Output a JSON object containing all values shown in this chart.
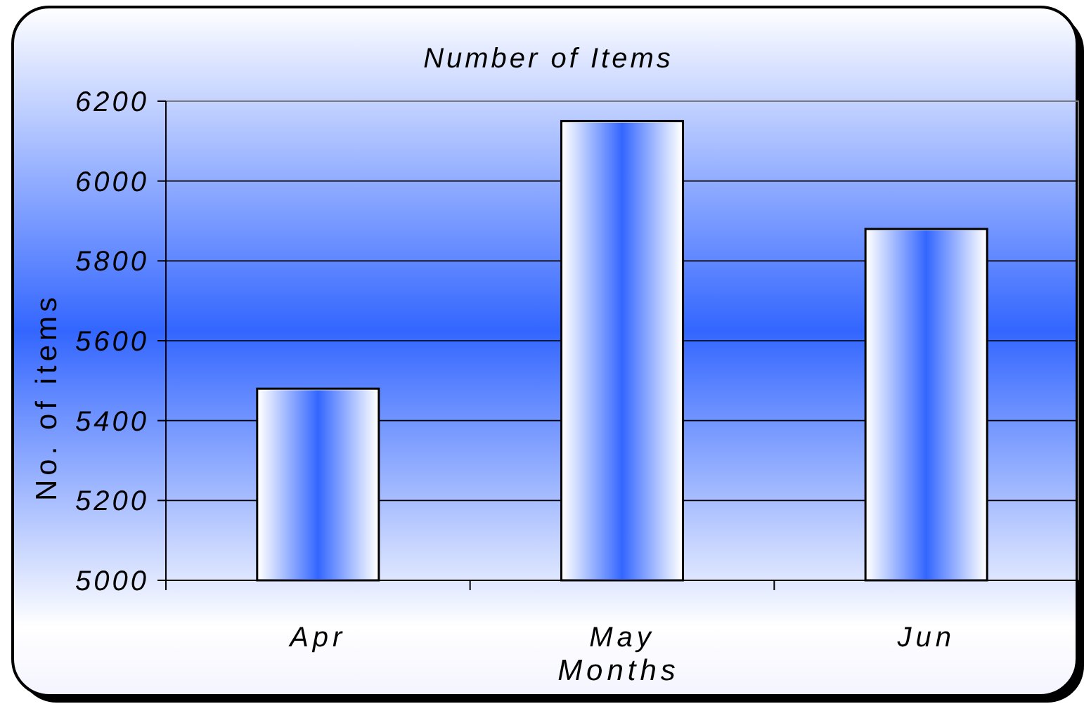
{
  "chart_data": {
    "type": "bar",
    "title": "Number of Items",
    "xlabel": "Months",
    "ylabel": "No. of items",
    "categories": [
      "Apr",
      "May",
      "Jun"
    ],
    "values": [
      5480,
      6150,
      5880
    ],
    "color": "#3366ff",
    "ylim": [
      5000,
      6200
    ],
    "yticks": [
      5000,
      5200,
      5400,
      5600,
      5800,
      6000,
      6200
    ],
    "grid": "y"
  }
}
